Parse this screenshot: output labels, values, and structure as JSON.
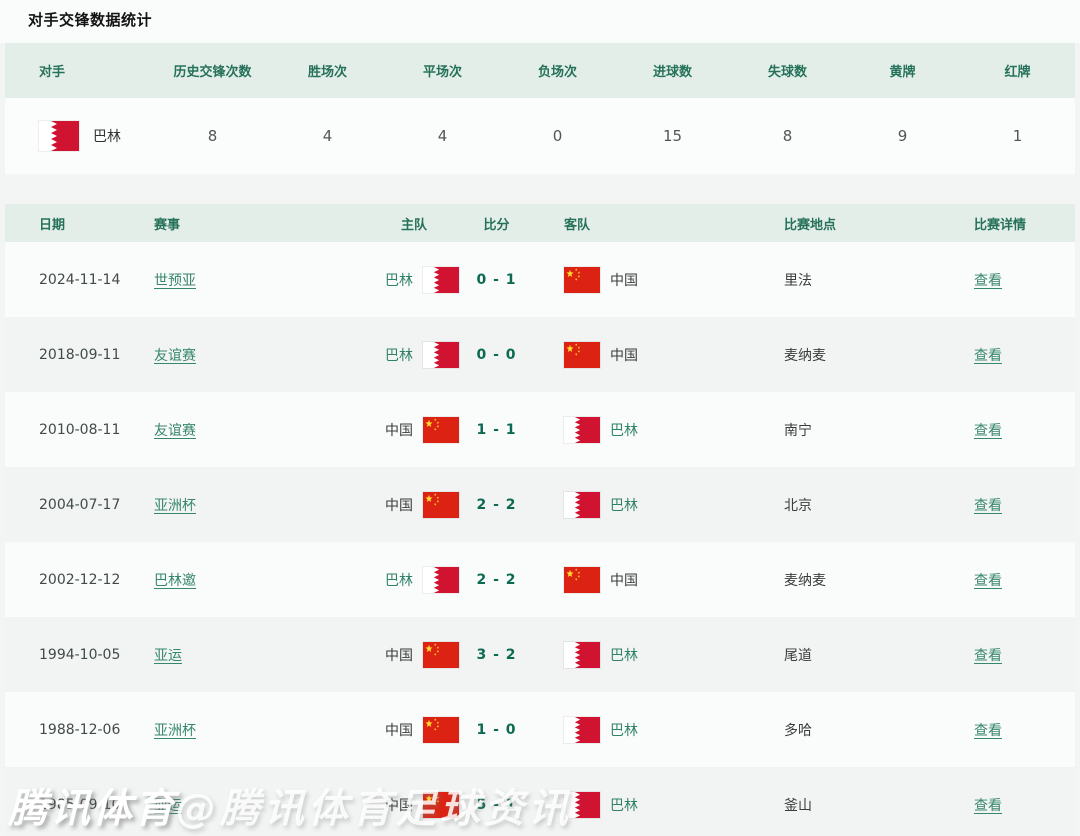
{
  "page": {
    "title": "对手交锋数据统计"
  },
  "colors": {
    "header_bg": "#e4eee9",
    "header_text": "#26715a",
    "link_green": "#37876c",
    "score_green": "#0c6a52",
    "china_flag_red": "#dc2313",
    "bahrain_flag_red": "#cf1330",
    "star_yellow": "#fede2c"
  },
  "summary_table": {
    "headers": [
      "对手",
      "历史交锋次数",
      "胜场次",
      "平场次",
      "负场次",
      "进球数",
      "失球数",
      "黄牌",
      "红牌"
    ],
    "row": {
      "team": "巴林",
      "flag": "bh",
      "values": [
        "8",
        "4",
        "4",
        "0",
        "15",
        "8",
        "9",
        "1"
      ]
    }
  },
  "matches_table": {
    "headers": [
      "日期",
      "赛事",
      "主队",
      "比分",
      "客队",
      "比赛地点",
      "比赛详情"
    ],
    "rows": [
      {
        "date": "2024-11-14",
        "competition": "世预亚",
        "home": {
          "name": "巴林",
          "flag": "bh"
        },
        "score": "0 - 1",
        "away": {
          "name": "中国",
          "flag": "cn"
        },
        "venue": "里法",
        "detail": "查看"
      },
      {
        "date": "2018-09-11",
        "competition": "友谊赛",
        "home": {
          "name": "巴林",
          "flag": "bh"
        },
        "score": "0 - 0",
        "away": {
          "name": "中国",
          "flag": "cn"
        },
        "venue": "麦纳麦",
        "detail": "查看"
      },
      {
        "date": "2010-08-11",
        "competition": "友谊赛",
        "home": {
          "name": "中国",
          "flag": "cn"
        },
        "score": "1 - 1",
        "away": {
          "name": "巴林",
          "flag": "bh"
        },
        "venue": "南宁",
        "detail": "查看"
      },
      {
        "date": "2004-07-17",
        "competition": "亚洲杯",
        "home": {
          "name": "中国",
          "flag": "cn"
        },
        "score": "2 - 2",
        "away": {
          "name": "巴林",
          "flag": "bh"
        },
        "venue": "北京",
        "detail": "查看"
      },
      {
        "date": "2002-12-12",
        "competition": "巴林邀",
        "home": {
          "name": "巴林",
          "flag": "bh"
        },
        "score": "2 - 2",
        "away": {
          "name": "中国",
          "flag": "cn"
        },
        "venue": "麦纳麦",
        "detail": "查看"
      },
      {
        "date": "1994-10-05",
        "competition": "亚运",
        "home": {
          "name": "中国",
          "flag": "cn"
        },
        "score": "3 - 2",
        "away": {
          "name": "巴林",
          "flag": "bh"
        },
        "venue": "尾道",
        "detail": "查看"
      },
      {
        "date": "1988-12-06",
        "competition": "亚洲杯",
        "home": {
          "name": "中国",
          "flag": "cn"
        },
        "score": "1 - 0",
        "away": {
          "name": "巴林",
          "flag": "bh"
        },
        "venue": "多哈",
        "detail": "查看"
      },
      {
        "date": "1985-09-10",
        "competition": "亚运",
        "home": {
          "name": "中国",
          "flag": "cn"
        },
        "score": "5 - 1",
        "away": {
          "name": "巴林",
          "flag": "bh"
        },
        "venue": "釜山",
        "detail": "查看"
      }
    ]
  },
  "watermark": {
    "brand": "腾讯体育",
    "handle": "@腾讯体育足球资讯"
  }
}
